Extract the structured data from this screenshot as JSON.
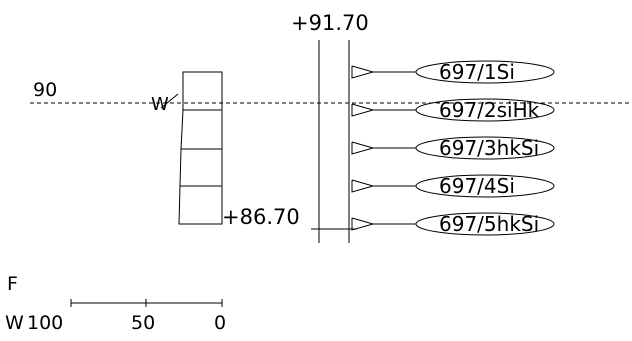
{
  "top_elevation": "+91.70",
  "bottom_elevation": "+86.70",
  "water_level": {
    "value": "90",
    "symbol": "W"
  },
  "sensors": [
    {
      "main": "697/1",
      "suffix": "Si"
    },
    {
      "main": "697/2",
      "suffix": "siHk"
    },
    {
      "main": "697/3",
      "suffix": "hkSi"
    },
    {
      "main": "697/4",
      "suffix": "Si"
    },
    {
      "main": "697/5",
      "suffix": "hkSi"
    }
  ],
  "scale": {
    "row_f_label": "F",
    "row_w_label": "W",
    "ticks": [
      "100",
      "50",
      "0"
    ]
  },
  "colors": {
    "line": "#000000",
    "background": "#ffffff"
  }
}
